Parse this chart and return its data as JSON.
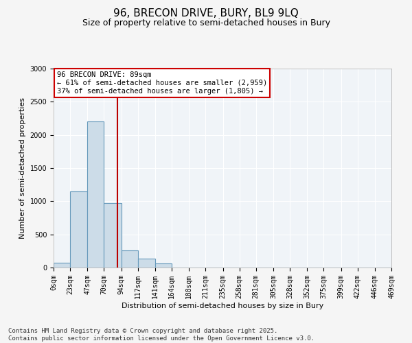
{
  "title": "96, BRECON DRIVE, BURY, BL9 9LQ",
  "subtitle": "Size of property relative to semi-detached houses in Bury",
  "xlabel": "Distribution of semi-detached houses by size in Bury",
  "ylabel": "Number of semi-detached properties",
  "footer_line1": "Contains HM Land Registry data © Crown copyright and database right 2025.",
  "footer_line2": "Contains public sector information licensed under the Open Government Licence v3.0.",
  "annotation_title": "96 BRECON DRIVE: 89sqm",
  "annotation_line2": "← 61% of semi-detached houses are smaller (2,959)",
  "annotation_line3": "37% of semi-detached houses are larger (1,805) →",
  "property_size_sqm": 89,
  "bin_edges": [
    0,
    23,
    47,
    70,
    94,
    117,
    141,
    164,
    188,
    211,
    235,
    258,
    281,
    305,
    328,
    352,
    375,
    399,
    422,
    446,
    469
  ],
  "bar_heights": [
    75,
    1150,
    2200,
    975,
    260,
    130,
    60,
    0,
    0,
    0,
    0,
    0,
    0,
    0,
    0,
    0,
    0,
    0,
    0,
    0
  ],
  "bar_color": "#ccdce8",
  "bar_edge_color": "#6699bb",
  "vline_color": "#bb0000",
  "vline_x": 89,
  "ylim": [
    0,
    3000
  ],
  "yticks": [
    0,
    500,
    1000,
    1500,
    2000,
    2500,
    3000
  ],
  "background_color": "#f5f5f5",
  "plot_background": "#f0f4f8",
  "grid_color": "#ffffff",
  "title_fontsize": 11,
  "subtitle_fontsize": 9,
  "axis_label_fontsize": 8,
  "tick_fontsize": 7,
  "annotation_fontsize": 7.5,
  "footer_fontsize": 6.5
}
